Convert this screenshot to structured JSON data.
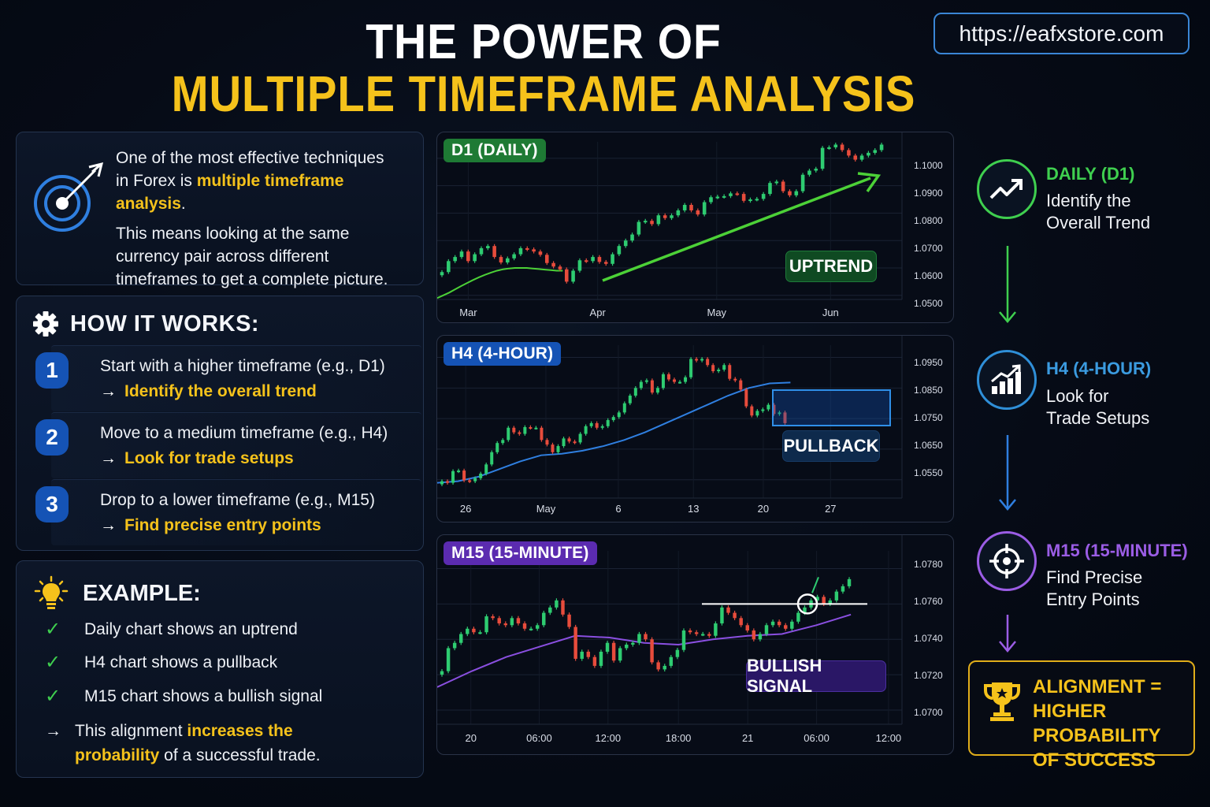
{
  "header": {
    "title_line1": "THE POWER OF",
    "title_line2": "MULTIPLE TIMEFRAME ANALYSIS",
    "url": "https://eafxstore.com"
  },
  "colors": {
    "background": "#050a14",
    "accent_yellow": "#f5c21b",
    "bull_green": "#2ecc71",
    "bear_red": "#e74c3c",
    "d1_green": "#1e7a34",
    "h4_blue": "#1553b5",
    "m15_purple": "#5b2bb0",
    "url_border": "#3a86d6"
  },
  "intro": {
    "icon": "target-arrow-icon",
    "line1": "One of the most effective techniques",
    "line2_prefix": "in Forex is ",
    "line2_highlight": "multiple timeframe analysis",
    "line2_suffix": ".",
    "para2": "This means looking at the same currency pair across different timeframes to get a complete picture."
  },
  "how_it_works": {
    "icon": "gear-icon",
    "heading": "HOW IT WORKS:",
    "steps": [
      {
        "number": "1",
        "text": "Start with a higher timeframe (e.g., D1)",
        "arrow": "→",
        "action": "Identify the overall trend"
      },
      {
        "number": "2",
        "text": "Move to a medium timeframe (e.g., H4)",
        "arrow": "→",
        "action": "Look for trade setups"
      },
      {
        "number": "3",
        "text": "Drop to a lower timeframe (e.g., M15)",
        "arrow": "→",
        "action": "Find precise entry points"
      }
    ]
  },
  "example": {
    "icon": "lightbulb-icon",
    "heading": "EXAMPLE:",
    "checks": [
      {
        "icon": "✓",
        "text": "Daily chart shows an uptrend"
      },
      {
        "icon": "✓",
        "text": "H4 chart shows a pullback"
      },
      {
        "icon": "✓",
        "text": "M15 chart shows a bullish signal"
      }
    ],
    "conclusion_arrow": "→",
    "conclusion_prefix": "This alignment ",
    "conclusion_highlight": "increases the probability",
    "conclusion_suffix": " of a successful trade."
  },
  "flow": [
    {
      "title": "DAILY (D1)",
      "desc_line1": "Identify the",
      "desc_line2": "Overall Trend",
      "color": "#3fcf4f",
      "icon": "trend-up-icon"
    },
    {
      "title": "H4 (4-HOUR)",
      "desc_line1": "Look for",
      "desc_line2": "Trade Setups",
      "color": "#3b9be0",
      "icon": "bar-chart-growth-icon"
    },
    {
      "title": "M15 (15-MINUTE)",
      "desc_line1": "Find Precise",
      "desc_line2": "Entry Points",
      "color": "#9b5de5",
      "icon": "crosshair-icon"
    }
  ],
  "result": {
    "icon": "trophy-icon",
    "line1": "ALIGNMENT =",
    "line2": "HIGHER PROBABILITY",
    "line3": "OF SUCCESS"
  },
  "chart_data": [
    {
      "type": "candlestick",
      "title": "D1 (DAILY)",
      "annotation": "UPTREND",
      "y_ticks": [
        "1.1000",
        "1.0900",
        "1.0800",
        "1.0700",
        "1.0600",
        "1.0500"
      ],
      "ylim": [
        1.0485,
        1.106
      ],
      "x_ticks": [
        {
          "label": "Mar",
          "pos": 0.06
        },
        {
          "label": "Apr",
          "pos": 0.31
        },
        {
          "label": "May",
          "pos": 0.54
        },
        {
          "label": "Jun",
          "pos": 0.76
        }
      ],
      "grid": true,
      "ma_color": "#4cd137",
      "close": [
        1.0585,
        1.0625,
        1.064,
        1.066,
        1.0625,
        1.065,
        1.0672,
        1.068,
        1.064,
        1.062,
        1.0635,
        1.065,
        1.0672,
        1.0668,
        1.066,
        1.0648,
        1.0618,
        1.0605,
        1.0595,
        1.055,
        1.059,
        1.0628,
        1.0625,
        1.064,
        1.0622,
        1.0615,
        1.065,
        1.068,
        1.07,
        1.0722,
        1.0768,
        1.0772,
        1.076,
        1.0792,
        1.0782,
        1.0792,
        1.081,
        1.083,
        1.081,
        1.0795,
        1.084,
        1.0858,
        1.086,
        1.0862,
        1.0872,
        1.087,
        1.0845,
        1.085,
        1.0852,
        1.087,
        1.091,
        1.0915,
        1.088,
        1.0865,
        1.088,
        1.094,
        1.0955,
        1.0962,
        1.1038,
        1.104,
        1.105,
        1.103,
        1.101,
        1.0995,
        1.101,
        1.102,
        1.103,
        1.105
      ],
      "ma": [
        1.049,
        1.05,
        1.051,
        1.0522,
        1.0534,
        1.0545,
        1.0556,
        1.0566,
        1.0575,
        1.0583,
        1.059,
        1.0595,
        1.0598,
        1.06,
        1.06,
        1.06,
        1.0598,
        1.0596,
        1.0594,
        1.0592,
        1.059,
        1.059
      ]
    },
    {
      "type": "candlestick",
      "title": "H4 (4-HOUR)",
      "annotation": "PULLBACK",
      "y_ticks": [
        "1.0950",
        "1.0850",
        "1.0750",
        "1.0650",
        "1.0550"
      ],
      "ylim": [
        1.049,
        1.099
      ],
      "x_ticks": [
        {
          "label": "26",
          "pos": 0.055
        },
        {
          "label": "May",
          "pos": 0.21
        },
        {
          "label": "6",
          "pos": 0.35
        },
        {
          "label": "13",
          "pos": 0.495
        },
        {
          "label": "20",
          "pos": 0.63
        },
        {
          "label": "27",
          "pos": 0.76
        }
      ],
      "grid": true,
      "ma_color": "#2f7fe0",
      "close": [
        1.0545,
        1.054,
        1.0578,
        1.058,
        1.0548,
        1.0545,
        1.0555,
        1.057,
        1.06,
        1.064,
        1.067,
        1.068,
        1.072,
        1.0705,
        1.07,
        1.0722,
        1.072,
        1.072,
        1.068,
        1.0665,
        1.064,
        1.066,
        1.0685,
        1.0675,
        1.0672,
        1.07,
        1.0725,
        1.0735,
        1.072,
        1.0725,
        1.0745,
        1.0755,
        1.077,
        1.08,
        1.0825,
        1.085,
        1.087,
        1.0875,
        1.0835,
        1.085,
        1.0895,
        1.0878,
        1.087,
        1.087,
        1.0885,
        1.0945,
        1.094,
        1.0945,
        1.0925,
        1.0905,
        1.091,
        1.0925,
        1.088,
        1.0875,
        1.0845,
        1.079,
        1.076,
        1.0775,
        1.078,
        1.0795,
        1.0765,
        1.077,
        1.0735
      ],
      "ma": [
        1.054,
        1.0545,
        1.056,
        1.0585,
        1.061,
        1.063,
        1.0635,
        1.0645,
        1.066,
        1.068,
        1.0705,
        1.0735,
        1.0765,
        1.0795,
        1.0825,
        1.085,
        1.0865,
        1.0868
      ]
    },
    {
      "type": "candlestick",
      "title": "M15 (15-MINUTE)",
      "annotation": "BULLISH SIGNAL",
      "y_ticks": [
        "1.0780",
        "1.0760",
        "1.0740",
        "1.0720",
        "1.0700"
      ],
      "ylim": [
        1.0692,
        1.079
      ],
      "x_ticks": [
        {
          "label": "20",
          "pos": 0.065
        },
        {
          "label": "06:00",
          "pos": 0.197
        },
        {
          "label": "12:00",
          "pos": 0.33
        },
        {
          "label": "18:00",
          "pos": 0.466
        },
        {
          "label": "21",
          "pos": 0.6
        },
        {
          "label": "06:00",
          "pos": 0.733
        },
        {
          "label": "12:00",
          "pos": 0.872
        }
      ],
      "resistance_level": 1.076,
      "grid": true,
      "ma_color": "#8a4fe0",
      "close": [
        1.0722,
        1.0735,
        1.0738,
        1.0743,
        1.0746,
        1.0744,
        1.0744,
        1.0753,
        1.0752,
        1.0749,
        1.0748,
        1.0752,
        1.0749,
        1.0746,
        1.0746,
        1.0748,
        1.0755,
        1.0758,
        1.0762,
        1.0754,
        1.0747,
        1.0729,
        1.0733,
        1.073,
        1.0725,
        1.0733,
        1.0738,
        1.0728,
        1.0735,
        1.0737,
        1.0738,
        1.0743,
        1.074,
        1.0727,
        1.0723,
        1.0725,
        1.073,
        1.0734,
        1.0745,
        1.0744,
        1.0743,
        1.0743,
        1.0742,
        1.0749,
        1.0758,
        1.0755,
        1.0752,
        1.0748,
        1.0745,
        1.074,
        1.0743,
        1.0748,
        1.075,
        1.0748,
        1.0746,
        1.075,
        1.0755,
        1.0758,
        1.0762,
        1.0764,
        1.076,
        1.0762,
        1.0767,
        1.077,
        1.0774
      ],
      "ma": [
        1.0713,
        1.0722,
        1.073,
        1.0736,
        1.0742,
        1.0741,
        1.0738,
        1.0737,
        1.074,
        1.0742,
        1.0743,
        1.0748,
        1.0754
      ]
    }
  ],
  "charts_meta": {
    "d1_badge_color": "#1e7a34",
    "h4_badge_color": "#1553b5",
    "m15_badge_color": "#5b2bb0"
  }
}
